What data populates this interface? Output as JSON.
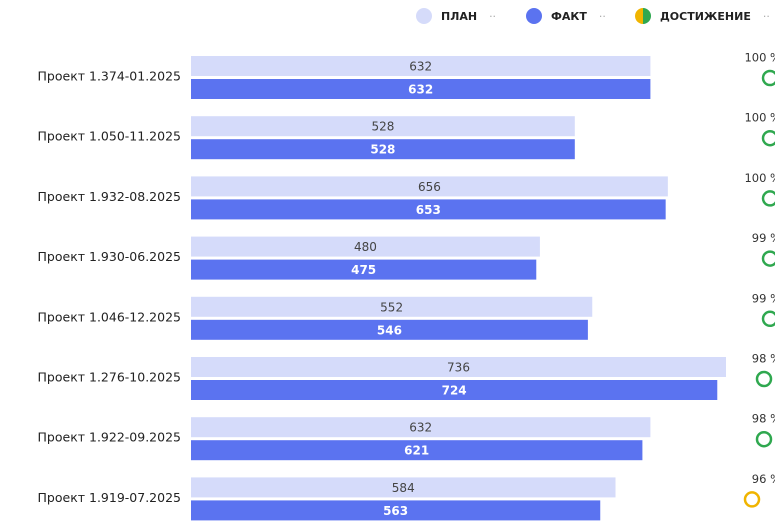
{
  "chart_data": {
    "type": "bar",
    "orientation": "horizontal",
    "categories": [
      "Проект 1.374-01.2025",
      "Проект 1.050-11.2025",
      "Проект 1.932-08.2025",
      "Проект 1.930-06.2025",
      "Проект 1.046-12.2025",
      "Проект 1.276-10.2025",
      "Проект 1.922-09.2025",
      "Проект 1.919-07.2025"
    ],
    "series": [
      {
        "name": "ПЛАН",
        "color": "#d5dbfa",
        "values": [
          632,
          528,
          656,
          480,
          552,
          736,
          632,
          584
        ]
      },
      {
        "name": "ФАКТ",
        "color": "#5b73f0",
        "values": [
          632,
          528,
          653,
          475,
          546,
          724,
          621,
          563
        ]
      },
      {
        "name": "ДОСТИЖЕНИЕ",
        "colors": [
          "#2fa84f",
          "#2fa84f",
          "#2fa84f",
          "#2fa84f",
          "#2fa84f",
          "#2fa84f",
          "#2fa84f",
          "#f0b400"
        ],
        "values": [
          100,
          100,
          100,
          99,
          99,
          98,
          98,
          96
        ],
        "value_labels": [
          "100 %",
          "100 %",
          "100 %",
          "99 %",
          "99 %",
          "98 %",
          "98 %",
          "96 %"
        ]
      }
    ]
  }
}
